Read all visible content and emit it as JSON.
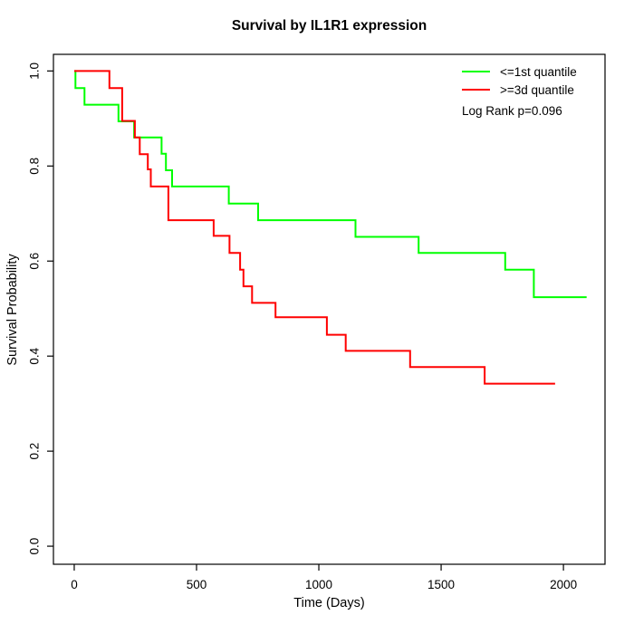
{
  "chart_data": {
    "type": "line",
    "subtype": "kaplan-meier-step",
    "title": "Survival by IL1R1 expression",
    "xlabel": "Time (Days)",
    "ylabel": "Survival Probability",
    "xlim": [
      -85,
      2170
    ],
    "ylim": [
      -0.038,
      1.035
    ],
    "xticks": [
      0,
      500,
      1000,
      1500,
      2000
    ],
    "yticks": [
      "0.0",
      "0.2",
      "0.4",
      "0.6",
      "0.8",
      "1.0"
    ],
    "grid": false,
    "legend_position": "top-right",
    "annotation": "Log Rank p=0.096",
    "axis_color": "#000000",
    "line_width": 2,
    "series": [
      {
        "name": "<=1st quantile",
        "color": "#00ff00",
        "points": [
          [
            0,
            1.0
          ],
          [
            5,
            0.964
          ],
          [
            42,
            0.929
          ],
          [
            181,
            0.894
          ],
          [
            245,
            0.86
          ],
          [
            357,
            0.826
          ],
          [
            375,
            0.791
          ],
          [
            400,
            0.757
          ],
          [
            632,
            0.721
          ],
          [
            752,
            0.686
          ],
          [
            1150,
            0.651
          ],
          [
            1408,
            0.617
          ],
          [
            1762,
            0.582
          ],
          [
            1879,
            0.524
          ],
          [
            2095,
            0.524
          ]
        ]
      },
      {
        "name": ">=3d quantile",
        "color": "#ff0000",
        "points": [
          [
            0,
            1.0
          ],
          [
            144,
            0.964
          ],
          [
            196,
            0.895
          ],
          [
            248,
            0.86
          ],
          [
            268,
            0.825
          ],
          [
            301,
            0.793
          ],
          [
            313,
            0.757
          ],
          [
            385,
            0.686
          ],
          [
            570,
            0.653
          ],
          [
            635,
            0.617
          ],
          [
            678,
            0.582
          ],
          [
            692,
            0.547
          ],
          [
            727,
            0.512
          ],
          [
            823,
            0.482
          ],
          [
            1033,
            0.445
          ],
          [
            1110,
            0.411
          ],
          [
            1373,
            0.377
          ],
          [
            1678,
            0.342
          ],
          [
            1966,
            0.342
          ]
        ]
      }
    ]
  }
}
